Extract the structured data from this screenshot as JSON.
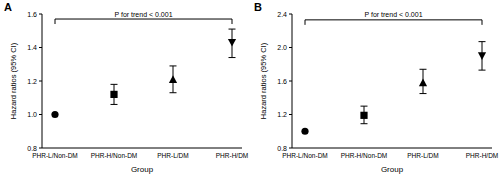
{
  "chart_data": [
    {
      "type": "errorbar",
      "panel_label": "A",
      "x_label": "Group",
      "y_label": "Hazard ratios (95% CI)",
      "categories": [
        "PHR-L/Non-DM",
        "PHR-H/Non-DM",
        "PHR-L/DM",
        "PHR-H/DM"
      ],
      "series": [
        {
          "color": "#000000",
          "values": [
            1.0,
            1.12,
            1.21,
            1.43
          ],
          "ci_lower": [
            1.0,
            1.06,
            1.13,
            1.34
          ],
          "ci_upper": [
            1.0,
            1.18,
            1.29,
            1.51
          ]
        }
      ],
      "ylim": [
        0.8,
        1.6
      ],
      "yticks": [
        0.8,
        {
          "value": 1,
          "label": "1.0"
        },
        1.2,
        1.4,
        1.6
      ],
      "annotations": [
        {
          "text": "P for trend < 0.001",
          "y": 1.57
        }
      ]
    },
    {
      "type": "errorbar",
      "panel_label": "B",
      "x_label": "Group",
      "y_label": "Hazard ratios (95% CI)",
      "categories": [
        "PHR-L/Non-DM",
        "PHR-H/Non-DM",
        "PHR-L/DM",
        "PHR-H/DM"
      ],
      "series": [
        {
          "color": "#000000",
          "values": [
            1.0,
            1.19,
            1.58,
            1.9
          ],
          "ci_lower": [
            1.0,
            1.09,
            1.45,
            1.73
          ],
          "ci_upper": [
            1.0,
            1.3,
            1.74,
            2.07
          ]
        }
      ],
      "ylim": [
        0.8,
        2.4
      ],
      "yticks": [
        0.8,
        1.2,
        1.6,
        {
          "value": 2,
          "label": "2.0"
        },
        2.4
      ],
      "annotations": [
        {
          "text": "P for trend < 0.001",
          "y": 2.33
        }
      ]
    }
  ]
}
